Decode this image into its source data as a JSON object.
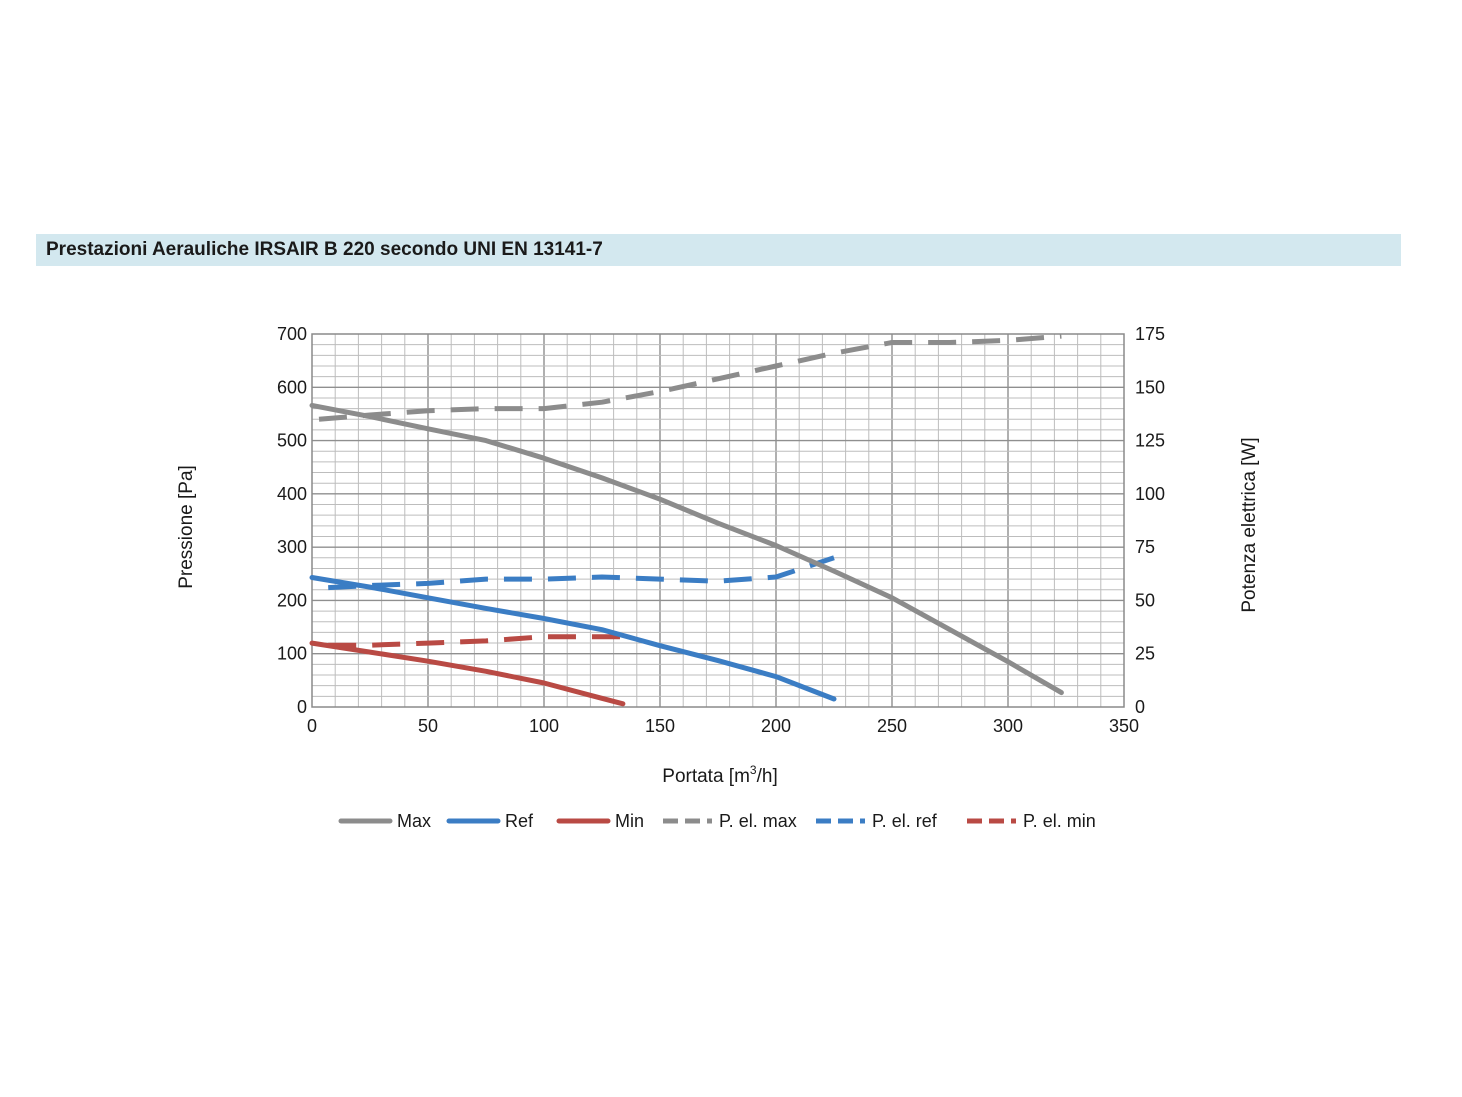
{
  "chart_data": {
    "type": "line",
    "title": "Prestazioni Aerauliche IRSAIR B 220 secondo UNI EN 13141-7",
    "xlabel_main": "Portata [m",
    "xlabel_sup": "3",
    "xlabel_end": "/h]",
    "ylabel_left": "Pressione [Pa]",
    "ylabel_right": "Potenza elettrica [W]",
    "xlim": [
      0,
      350
    ],
    "ylim_left": [
      0,
      700
    ],
    "ylim_right": [
      0,
      175
    ],
    "x_ticks": [
      0,
      50,
      100,
      150,
      200,
      250,
      300,
      350
    ],
    "y_left_ticks": [
      0,
      100,
      200,
      300,
      400,
      500,
      600,
      700
    ],
    "y_right_ticks": [
      0,
      25,
      50,
      75,
      100,
      125,
      150,
      175
    ],
    "grid": true,
    "legend_position": "bottom",
    "series": [
      {
        "name": "Max",
        "axis": "left",
        "style": "solid",
        "color": "#8c8c8c",
        "points": [
          [
            0,
            566
          ],
          [
            25,
            545
          ],
          [
            50,
            522
          ],
          [
            75,
            500
          ],
          [
            100,
            467
          ],
          [
            125,
            430
          ],
          [
            150,
            390
          ],
          [
            175,
            345
          ],
          [
            200,
            303
          ],
          [
            225,
            255
          ],
          [
            250,
            205
          ],
          [
            275,
            145
          ],
          [
            300,
            85
          ],
          [
            323,
            27
          ]
        ]
      },
      {
        "name": "Ref",
        "axis": "left",
        "style": "solid",
        "color": "#3b7dc4",
        "points": [
          [
            0,
            243
          ],
          [
            25,
            225
          ],
          [
            50,
            205
          ],
          [
            75,
            185
          ],
          [
            100,
            166
          ],
          [
            125,
            145
          ],
          [
            150,
            115
          ],
          [
            175,
            87
          ],
          [
            200,
            57
          ],
          [
            225,
            15
          ]
        ]
      },
      {
        "name": "Min",
        "axis": "left",
        "style": "solid",
        "color": "#b94a44",
        "points": [
          [
            0,
            120
          ],
          [
            25,
            103
          ],
          [
            50,
            86
          ],
          [
            75,
            67
          ],
          [
            100,
            45
          ],
          [
            120,
            22
          ],
          [
            134,
            6
          ]
        ]
      },
      {
        "name": "P. el. max",
        "axis": "right",
        "style": "dashed",
        "color": "#8c8c8c",
        "points": [
          [
            3,
            135
          ],
          [
            25,
            137
          ],
          [
            50,
            139
          ],
          [
            75,
            140
          ],
          [
            100,
            140
          ],
          [
            125,
            143
          ],
          [
            150,
            148
          ],
          [
            175,
            154
          ],
          [
            200,
            160
          ],
          [
            225,
            166
          ],
          [
            250,
            171
          ],
          [
            275,
            171
          ],
          [
            300,
            172
          ],
          [
            323,
            174
          ]
        ]
      },
      {
        "name": "P. el. ref",
        "axis": "right",
        "style": "dashed",
        "color": "#3b7dc4",
        "points": [
          [
            7,
            56
          ],
          [
            25,
            57
          ],
          [
            50,
            58
          ],
          [
            75,
            60
          ],
          [
            100,
            60
          ],
          [
            125,
            61
          ],
          [
            150,
            60
          ],
          [
            175,
            59
          ],
          [
            200,
            61
          ],
          [
            225,
            70
          ]
        ]
      },
      {
        "name": "P. el. min",
        "axis": "right",
        "style": "dashed",
        "color": "#b94a44",
        "points": [
          [
            7,
            29
          ],
          [
            25,
            29
          ],
          [
            50,
            30
          ],
          [
            75,
            31
          ],
          [
            100,
            33
          ],
          [
            134,
            33
          ]
        ]
      }
    ]
  }
}
